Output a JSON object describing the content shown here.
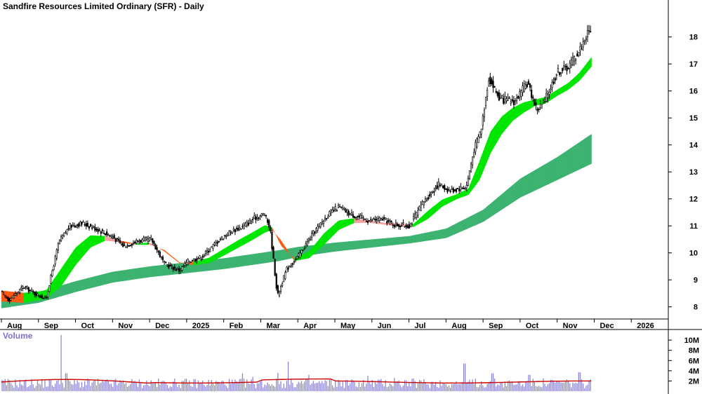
{
  "chart_data": {
    "type": "candlestick",
    "title": "Sandfire Resources Limited Ordinary (SFR) - Daily",
    "price_axis": {
      "ticks": [
        8,
        9,
        10,
        11,
        12,
        13,
        14,
        15,
        16,
        17,
        18
      ],
      "range": [
        7.55,
        18.85
      ],
      "position": "right"
    },
    "time_axis": {
      "labels": [
        "Aug",
        "Sep",
        "Oct",
        "Nov",
        "Dec",
        "2025",
        "Feb",
        "Mar",
        "Apr",
        "May",
        "Jun",
        "Jul",
        "Aug",
        "Sep",
        "Oct",
        "Nov",
        "Dec",
        "2026"
      ],
      "months_spanned": 18
    },
    "price_path": [
      [
        0.0,
        8.55
      ],
      [
        0.2,
        8.25
      ],
      [
        0.6,
        8.75
      ],
      [
        0.95,
        8.45
      ],
      [
        1.2,
        8.3
      ],
      [
        1.55,
        10.4
      ],
      [
        1.85,
        11.0
      ],
      [
        2.2,
        11.1
      ],
      [
        2.55,
        10.9
      ],
      [
        3.0,
        10.6
      ],
      [
        3.3,
        10.25
      ],
      [
        3.7,
        10.45
      ],
      [
        4.05,
        10.5
      ],
      [
        4.4,
        9.6
      ],
      [
        4.8,
        9.35
      ],
      [
        5.05,
        9.7
      ],
      [
        5.4,
        9.85
      ],
      [
        5.85,
        10.45
      ],
      [
        6.2,
        10.8
      ],
      [
        6.55,
        11.0
      ],
      [
        6.85,
        11.3
      ],
      [
        7.1,
        11.45
      ],
      [
        7.25,
        10.9
      ],
      [
        7.45,
        8.4
      ],
      [
        7.7,
        9.4
      ],
      [
        8.0,
        9.85
      ],
      [
        8.4,
        10.7
      ],
      [
        8.8,
        11.4
      ],
      [
        9.1,
        11.7
      ],
      [
        9.4,
        11.45
      ],
      [
        9.9,
        11.2
      ],
      [
        10.3,
        11.25
      ],
      [
        10.6,
        11.05
      ],
      [
        11.0,
        11.0
      ],
      [
        11.4,
        11.9
      ],
      [
        11.8,
        12.55
      ],
      [
        12.1,
        12.3
      ],
      [
        12.55,
        12.45
      ],
      [
        12.75,
        13.8
      ],
      [
        12.95,
        14.6
      ],
      [
        13.15,
        16.5
      ],
      [
        13.45,
        15.7
      ],
      [
        13.85,
        15.6
      ],
      [
        14.2,
        16.3
      ],
      [
        14.45,
        15.3
      ],
      [
        14.65,
        15.6
      ],
      [
        15.0,
        16.7
      ],
      [
        15.3,
        16.9
      ],
      [
        15.6,
        17.5
      ],
      [
        15.8,
        18.1
      ],
      [
        15.92,
        18.35
      ]
    ],
    "short_term_band": {
      "upper": [
        [
          0.0,
          8.6
        ],
        [
          0.6,
          8.52
        ],
        [
          1.2,
          8.6
        ],
        [
          1.6,
          9.4
        ],
        [
          2.0,
          10.2
        ],
        [
          2.4,
          10.65
        ],
        [
          2.8,
          10.62
        ],
        [
          3.2,
          10.45
        ],
        [
          3.6,
          10.35
        ],
        [
          4.0,
          10.38
        ],
        [
          4.4,
          10.05
        ],
        [
          4.8,
          9.62
        ],
        [
          5.2,
          9.68
        ],
        [
          5.6,
          9.82
        ],
        [
          6.0,
          10.15
        ],
        [
          6.4,
          10.48
        ],
        [
          6.8,
          10.78
        ],
        [
          7.1,
          11.02
        ],
        [
          7.3,
          10.95
        ],
        [
          7.55,
          10.25
        ],
        [
          7.9,
          9.8
        ],
        [
          8.3,
          10.05
        ],
        [
          8.7,
          10.72
        ],
        [
          9.1,
          11.2
        ],
        [
          9.5,
          11.28
        ],
        [
          9.9,
          11.2
        ],
        [
          10.3,
          11.12
        ],
        [
          10.7,
          11.08
        ],
        [
          11.1,
          11.05
        ],
        [
          11.5,
          11.55
        ],
        [
          11.9,
          11.98
        ],
        [
          12.3,
          12.18
        ],
        [
          12.6,
          12.38
        ],
        [
          12.9,
          13.4
        ],
        [
          13.2,
          14.5
        ],
        [
          13.5,
          15.05
        ],
        [
          13.8,
          15.38
        ],
        [
          14.1,
          15.58
        ],
        [
          14.4,
          15.68
        ],
        [
          14.7,
          15.78
        ],
        [
          15.0,
          16.05
        ],
        [
          15.3,
          16.3
        ],
        [
          15.6,
          16.68
        ],
        [
          15.92,
          17.25
        ]
      ],
      "lower": [
        [
          0.0,
          8.2
        ],
        [
          0.6,
          8.15
        ],
        [
          1.2,
          8.3
        ],
        [
          1.6,
          8.75
        ],
        [
          2.0,
          9.55
        ],
        [
          2.4,
          10.2
        ],
        [
          2.8,
          10.45
        ],
        [
          3.2,
          10.4
        ],
        [
          3.6,
          10.3
        ],
        [
          4.0,
          10.3
        ],
        [
          4.4,
          10.1
        ],
        [
          4.8,
          9.65
        ],
        [
          5.2,
          9.55
        ],
        [
          5.6,
          9.62
        ],
        [
          6.0,
          9.9
        ],
        [
          6.4,
          10.2
        ],
        [
          6.8,
          10.5
        ],
        [
          7.1,
          10.75
        ],
        [
          7.3,
          10.85
        ],
        [
          7.55,
          10.45
        ],
        [
          7.9,
          9.7
        ],
        [
          8.3,
          9.8
        ],
        [
          8.7,
          10.3
        ],
        [
          9.1,
          10.85
        ],
        [
          9.5,
          11.1
        ],
        [
          9.9,
          11.12
        ],
        [
          10.3,
          11.05
        ],
        [
          10.7,
          10.98
        ],
        [
          11.1,
          10.95
        ],
        [
          11.5,
          11.25
        ],
        [
          11.9,
          11.72
        ],
        [
          12.3,
          12.0
        ],
        [
          12.6,
          12.15
        ],
        [
          12.9,
          12.7
        ],
        [
          13.2,
          13.7
        ],
        [
          13.5,
          14.4
        ],
        [
          13.8,
          14.9
        ],
        [
          14.1,
          15.2
        ],
        [
          14.4,
          15.45
        ],
        [
          14.7,
          15.55
        ],
        [
          15.0,
          15.82
        ],
        [
          15.3,
          16.05
        ],
        [
          15.6,
          16.38
        ],
        [
          15.92,
          16.9
        ]
      ],
      "color_up": "#00e600",
      "color_down": "#ff5a14",
      "color_down_light": "#f5a3a0"
    },
    "long_term_band": {
      "upper": [
        [
          0.0,
          8.45
        ],
        [
          1.0,
          8.55
        ],
        [
          2.0,
          8.95
        ],
        [
          3.0,
          9.3
        ],
        [
          4.0,
          9.5
        ],
        [
          5.0,
          9.65
        ],
        [
          6.0,
          9.8
        ],
        [
          7.0,
          10.0
        ],
        [
          7.5,
          10.1
        ],
        [
          8.0,
          10.22
        ],
        [
          9.0,
          10.38
        ],
        [
          10.0,
          10.5
        ],
        [
          11.0,
          10.62
        ],
        [
          12.0,
          10.9
        ],
        [
          13.0,
          11.6
        ],
        [
          14.0,
          12.75
        ],
        [
          15.0,
          13.55
        ],
        [
          15.92,
          14.4
        ]
      ],
      "lower": [
        [
          0.0,
          7.95
        ],
        [
          1.0,
          8.15
        ],
        [
          2.0,
          8.55
        ],
        [
          3.0,
          8.9
        ],
        [
          4.0,
          9.1
        ],
        [
          5.0,
          9.25
        ],
        [
          6.0,
          9.4
        ],
        [
          7.0,
          9.6
        ],
        [
          7.5,
          9.7
        ],
        [
          8.0,
          9.85
        ],
        [
          9.0,
          10.05
        ],
        [
          10.0,
          10.2
        ],
        [
          11.0,
          10.35
        ],
        [
          12.0,
          10.55
        ],
        [
          13.0,
          11.15
        ],
        [
          14.0,
          12.05
        ],
        [
          15.0,
          12.7
        ],
        [
          15.92,
          13.3
        ]
      ],
      "color": "#3cb371"
    },
    "volume": {
      "title": "Volume",
      "ticks": [
        {
          "label": "2M",
          "value": 2
        },
        {
          "label": "4M",
          "value": 4
        },
        {
          "label": "6M",
          "value": 6
        },
        {
          "label": "8M",
          "value": 8
        },
        {
          "label": "10M",
          "value": 10
        }
      ],
      "range": [
        0,
        11.8
      ],
      "avg_level": 1.8,
      "avg_color": "#cc0000",
      "bar_color": "#8a84d8",
      "spikes": [
        [
          1.6,
          11.0
        ],
        [
          1.75,
          3.5
        ],
        [
          6.5,
          3.5
        ],
        [
          7.45,
          3.6
        ],
        [
          7.75,
          5.8
        ],
        [
          8.3,
          3.2
        ],
        [
          9.9,
          3.0
        ],
        [
          12.5,
          5.4
        ],
        [
          13.25,
          3.5
        ],
        [
          14.25,
          3.2
        ],
        [
          15.6,
          3.7
        ],
        [
          6.8,
          2.8
        ],
        [
          10.6,
          2.6
        ]
      ]
    },
    "colors": {
      "candle": "#000000",
      "grid": "none",
      "background": "#ffffff"
    }
  }
}
